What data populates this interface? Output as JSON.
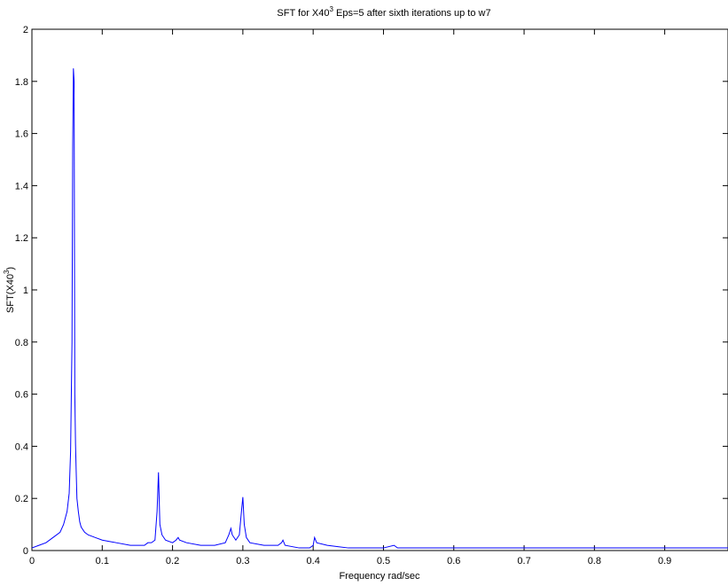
{
  "chart_data": {
    "type": "line",
    "title_main": "SFT for X40",
    "title_sup": "3",
    "title_rest": " Eps=5 after sixth iterations up to w7",
    "xlabel": "Frequency rad/sec",
    "ylabel_main": "SFT(X40",
    "ylabel_sup": "3",
    "ylabel_end": ")",
    "xlim": [
      0,
      0.99
    ],
    "ylim": [
      0,
      2
    ],
    "grid": false,
    "line_color": "#0000ff",
    "x_ticks": [
      0,
      0.1,
      0.2,
      0.3,
      0.4,
      0.5,
      0.6,
      0.7,
      0.8,
      0.9
    ],
    "x_tick_labels": [
      "0",
      "0.1",
      "0.2",
      "0.3",
      "0.4",
      "0.5",
      "0.6",
      "0.7",
      "0.8",
      "0.9"
    ],
    "y_ticks": [
      0,
      0.2,
      0.4,
      0.6,
      0.8,
      1,
      1.2,
      1.4,
      1.6,
      1.8,
      2
    ],
    "y_tick_labels": [
      "0",
      "0.2",
      "0.4",
      "0.6",
      "0.8",
      "1",
      "1.2",
      "1.4",
      "1.6",
      "1.8",
      "2"
    ],
    "series": [
      {
        "x": [
          0,
          0.01,
          0.02,
          0.03,
          0.04,
          0.045,
          0.05,
          0.053,
          0.055,
          0.057,
          0.058,
          0.059,
          0.06,
          0.061,
          0.062,
          0.063,
          0.064,
          0.066,
          0.068,
          0.07,
          0.075,
          0.08,
          0.09,
          0.1,
          0.12,
          0.14,
          0.16,
          0.165,
          0.17,
          0.175,
          0.178,
          0.18,
          0.182,
          0.185,
          0.19,
          0.2,
          0.205,
          0.208,
          0.21,
          0.22,
          0.24,
          0.26,
          0.275,
          0.28,
          0.283,
          0.285,
          0.29,
          0.295,
          0.298,
          0.3,
          0.302,
          0.305,
          0.31,
          0.33,
          0.35,
          0.355,
          0.357,
          0.36,
          0.38,
          0.395,
          0.4,
          0.402,
          0.405,
          0.42,
          0.45,
          0.48,
          0.5,
          0.515,
          0.52,
          0.55,
          0.6,
          0.65,
          0.7,
          0.75,
          0.8,
          0.85,
          0.9,
          0.95,
          0.99
        ],
        "y": [
          0.01,
          0.02,
          0.03,
          0.05,
          0.07,
          0.1,
          0.15,
          0.22,
          0.38,
          0.8,
          1.55,
          1.85,
          1.8,
          0.6,
          0.41,
          0.3,
          0.2,
          0.15,
          0.11,
          0.09,
          0.07,
          0.06,
          0.05,
          0.04,
          0.03,
          0.02,
          0.02,
          0.03,
          0.03,
          0.04,
          0.15,
          0.3,
          0.1,
          0.06,
          0.04,
          0.03,
          0.04,
          0.05,
          0.04,
          0.03,
          0.02,
          0.02,
          0.03,
          0.06,
          0.085,
          0.06,
          0.04,
          0.06,
          0.15,
          0.205,
          0.1,
          0.05,
          0.03,
          0.02,
          0.02,
          0.03,
          0.04,
          0.02,
          0.01,
          0.01,
          0.02,
          0.05,
          0.03,
          0.02,
          0.01,
          0.01,
          0.01,
          0.02,
          0.01,
          0.01,
          0.01,
          0.01,
          0.01,
          0.01,
          0.01,
          0.01,
          0.01,
          0.01,
          0.01
        ]
      }
    ]
  }
}
